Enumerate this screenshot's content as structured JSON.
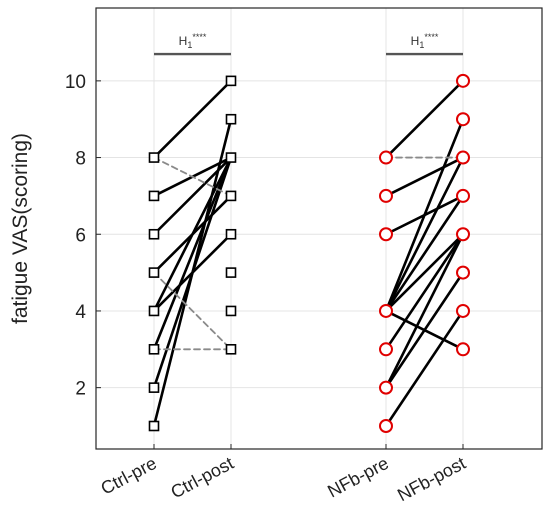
{
  "chart_data": {
    "type": "scatter",
    "title": "",
    "xlabel": "",
    "ylabel": "fatigue VAS(scoring)",
    "ylim": [
      0.4,
      11.9
    ],
    "yticks": [
      2,
      4,
      6,
      8,
      10
    ],
    "grid": true,
    "categories": [
      "Ctrl-pre",
      "Ctrl-post",
      "NFb-pre",
      "NFb-post"
    ],
    "groups": [
      {
        "pre": "Ctrl-pre",
        "post": "Ctrl-post",
        "marker": "square",
        "marker_color": "#000000",
        "pairs": [
          {
            "pre": 1,
            "post": 9,
            "style": "solid"
          },
          {
            "pre": 2,
            "post": 8,
            "style": "solid"
          },
          {
            "pre": 3,
            "post": 3,
            "style": "dashed"
          },
          {
            "pre": 3,
            "post": 8,
            "style": "solid"
          },
          {
            "pre": 4,
            "post": 6,
            "style": "solid"
          },
          {
            "pre": 4,
            "post": 8,
            "style": "solid"
          },
          {
            "pre": 5,
            "post": 3,
            "style": "dashed"
          },
          {
            "pre": 5,
            "post": 7,
            "style": "solid"
          },
          {
            "pre": 6,
            "post": 8,
            "style": "solid"
          },
          {
            "pre": 7,
            "post": 8,
            "style": "solid"
          },
          {
            "pre": 8,
            "post": 7,
            "style": "dashed"
          },
          {
            "pre": 8,
            "post": 10,
            "style": "solid"
          }
        ],
        "pre_markers": [
          1,
          2,
          3,
          4,
          5,
          6,
          7,
          8
        ],
        "post_markers": [
          3,
          4,
          5,
          6,
          7,
          8,
          9,
          10
        ]
      },
      {
        "pre": "NFb-pre",
        "post": "NFb-post",
        "marker": "circle",
        "marker_color": "#e00000",
        "pairs": [
          {
            "pre": 1,
            "post": 4,
            "style": "solid"
          },
          {
            "pre": 2,
            "post": 5,
            "style": "solid"
          },
          {
            "pre": 2,
            "post": 6,
            "style": "solid"
          },
          {
            "pre": 3,
            "post": 6,
            "style": "solid"
          },
          {
            "pre": 4,
            "post": 3,
            "style": "solid"
          },
          {
            "pre": 4,
            "post": 6,
            "style": "solid"
          },
          {
            "pre": 4,
            "post": 7,
            "style": "solid"
          },
          {
            "pre": 4,
            "post": 8,
            "style": "solid"
          },
          {
            "pre": 4,
            "post": 9,
            "style": "solid"
          },
          {
            "pre": 6,
            "post": 7,
            "style": "solid"
          },
          {
            "pre": 7,
            "post": 8,
            "style": "solid"
          },
          {
            "pre": 8,
            "post": 8,
            "style": "dashed"
          },
          {
            "pre": 8,
            "post": 10,
            "style": "solid"
          }
        ],
        "pre_markers": [
          1,
          2,
          3,
          4,
          6,
          7,
          8
        ],
        "post_markers": [
          3,
          4,
          5,
          6,
          7,
          8,
          9,
          10
        ]
      }
    ],
    "significance": [
      {
        "from": "Ctrl-pre",
        "to": "Ctrl-post",
        "y": 10.7,
        "label": "H1****",
        "main": "H",
        "sub": "1",
        "sup": "****"
      },
      {
        "from": "NFb-pre",
        "to": "NFb-post",
        "y": 10.7,
        "label": "H1****",
        "main": "H",
        "sub": "1",
        "sup": "****"
      }
    ]
  }
}
